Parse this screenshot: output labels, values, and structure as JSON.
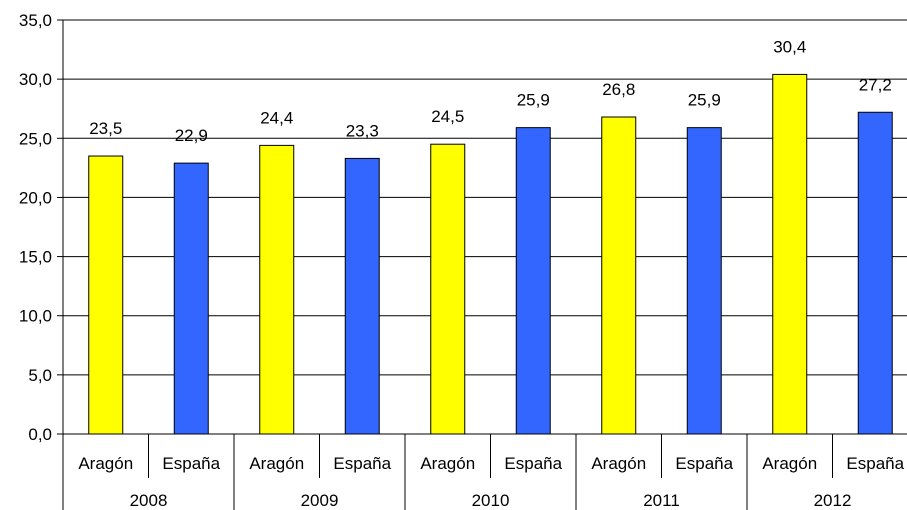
{
  "chart_data": {
    "type": "bar",
    "groups": [
      "2008",
      "2009",
      "2010",
      "2011",
      "2012"
    ],
    "series": [
      {
        "name": "Aragón",
        "color": "#ffff00",
        "values": [
          23.5,
          24.4,
          24.5,
          26.8,
          30.4
        ]
      },
      {
        "name": "España",
        "color": "#3366ff",
        "values": [
          22.9,
          23.3,
          25.9,
          25.9,
          27.2
        ]
      }
    ],
    "data_labels": {
      "Aragón": [
        "23,5",
        "24,4",
        "24,5",
        "26,8",
        "30,4"
      ],
      "España": [
        "22,9",
        "23,3",
        "25,9",
        "25,9",
        "27,2"
      ]
    },
    "category_labels": [
      "Aragón",
      "España",
      "Aragón",
      "España",
      "Aragón",
      "España",
      "Aragón",
      "España",
      "Aragón",
      "España"
    ],
    "y_ticks": [
      "0,0",
      "5,0",
      "10,0",
      "15,0",
      "20,0",
      "25,0",
      "30,0",
      "35,0"
    ],
    "ylim": [
      0,
      35
    ],
    "grid": true,
    "title": "",
    "xlabel": "",
    "ylabel": ""
  }
}
